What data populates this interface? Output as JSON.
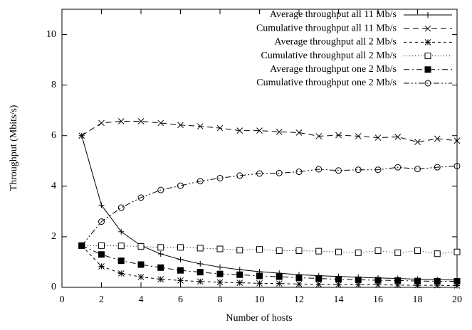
{
  "chart_data": {
    "type": "line",
    "x_label": "Number of hosts",
    "y_label": "Throughput (Mbits/s)",
    "x": [
      1,
      2,
      3,
      4,
      5,
      6,
      7,
      8,
      9,
      10,
      11,
      12,
      13,
      14,
      15,
      16,
      17,
      18,
      19,
      20
    ],
    "xlim": [
      0,
      20
    ],
    "xticks": [
      0,
      2,
      4,
      6,
      8,
      10,
      12,
      14,
      16,
      18,
      20
    ],
    "ylim": [
      0,
      11
    ],
    "yticks": [
      0,
      2,
      4,
      6,
      8,
      10
    ],
    "legend": "top-right",
    "series": [
      {
        "name": "Average throughput all 11 Mb/s",
        "color": "#000000",
        "marker": "plus",
        "dash": "none",
        "values": [
          6.0,
          3.25,
          2.2,
          1.65,
          1.32,
          1.1,
          0.93,
          0.8,
          0.7,
          0.62,
          0.56,
          0.5,
          0.46,
          0.43,
          0.4,
          0.37,
          0.35,
          0.32,
          0.3,
          0.29
        ]
      },
      {
        "name": "Cumulative throughput all 11 Mb/s",
        "color": "#000000",
        "marker": "cross",
        "dash": "8,5",
        "values": [
          6.0,
          6.5,
          6.57,
          6.57,
          6.5,
          6.42,
          6.37,
          6.3,
          6.2,
          6.2,
          6.15,
          6.12,
          5.98,
          6.02,
          5.98,
          5.92,
          5.95,
          5.75,
          5.88,
          5.8
        ]
      },
      {
        "name": "Average throughput all 2 Mb/s",
        "color": "#000000",
        "marker": "star",
        "dash": "4,4",
        "values": [
          1.65,
          0.83,
          0.55,
          0.41,
          0.32,
          0.27,
          0.23,
          0.2,
          0.18,
          0.16,
          0.15,
          0.13,
          0.12,
          0.11,
          0.1,
          0.1,
          0.09,
          0.08,
          0.08,
          0.07
        ]
      },
      {
        "name": "Cumulative throughput all 2 Mb/s",
        "color": "#000000",
        "marker": "square",
        "dash": "1,3",
        "values": [
          1.65,
          1.65,
          1.64,
          1.62,
          1.58,
          1.58,
          1.55,
          1.52,
          1.47,
          1.5,
          1.45,
          1.45,
          1.43,
          1.4,
          1.37,
          1.45,
          1.37,
          1.45,
          1.33,
          1.4
        ]
      },
      {
        "name": "Average throughput one 2 Mb/s",
        "color": "#000000",
        "marker": "filled-square",
        "dash": "8,4,2,4",
        "values": [
          1.65,
          1.3,
          1.05,
          0.9,
          0.78,
          0.67,
          0.6,
          0.53,
          0.5,
          0.45,
          0.42,
          0.38,
          0.35,
          0.32,
          0.3,
          0.28,
          0.27,
          0.25,
          0.24,
          0.24
        ]
      },
      {
        "name": "Cumulative throughput one 2 Mb/s",
        "color": "#000000",
        "marker": "circle",
        "dash": "8,3,2,3,2,3",
        "values": [
          1.65,
          2.6,
          3.15,
          3.55,
          3.85,
          4.02,
          4.2,
          4.32,
          4.42,
          4.5,
          4.52,
          4.57,
          4.67,
          4.62,
          4.65,
          4.65,
          4.75,
          4.68,
          4.75,
          4.8
        ]
      }
    ]
  }
}
